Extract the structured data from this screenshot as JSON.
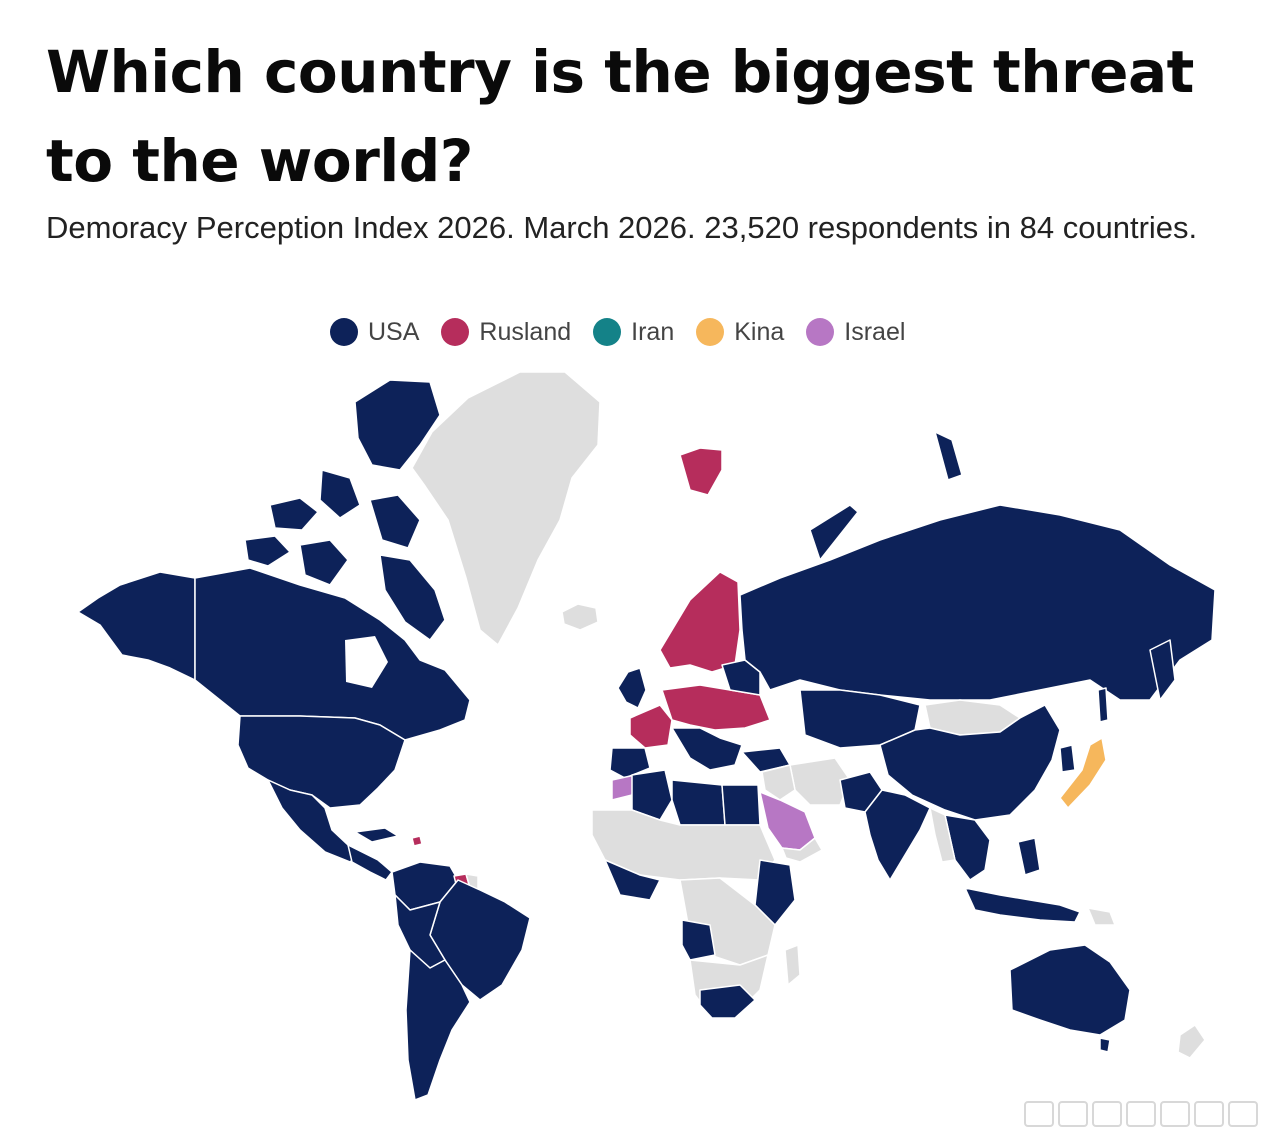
{
  "header": {
    "title": "Which country is the biggest threat to the world?",
    "subtitle": "Demoracy Perception Index 2026. March 2026. 23,520 respondents in 84 countries."
  },
  "legend": {
    "items": [
      {
        "label": "USA",
        "color": "#0d2259"
      },
      {
        "label": "Rusland",
        "color": "#b62d5c"
      },
      {
        "label": "Iran",
        "color": "#148288"
      },
      {
        "label": "Kina",
        "color": "#f6b75c"
      },
      {
        "label": "Israel",
        "color": "#b777c4"
      }
    ]
  },
  "colors": {
    "no_data": "#dedede",
    "border": "#ffffff"
  }
}
